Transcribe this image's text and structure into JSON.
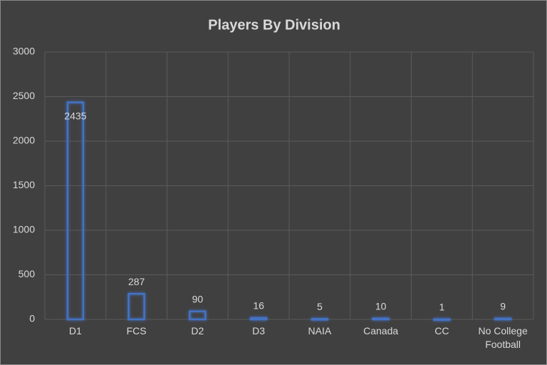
{
  "chart_data": {
    "type": "bar",
    "title": "Players By Division",
    "categories": [
      "D1",
      "FCS",
      "D2",
      "D3",
      "NAIA",
      "Canada",
      "CC",
      "No College Football"
    ],
    "values": [
      2435,
      287,
      90,
      16,
      5,
      10,
      1,
      9
    ],
    "color": "#4472c4",
    "ylim": [
      0,
      3000
    ],
    "yticks": [
      0,
      500,
      1000,
      1500,
      2000,
      2500,
      3000
    ],
    "grid": true
  }
}
